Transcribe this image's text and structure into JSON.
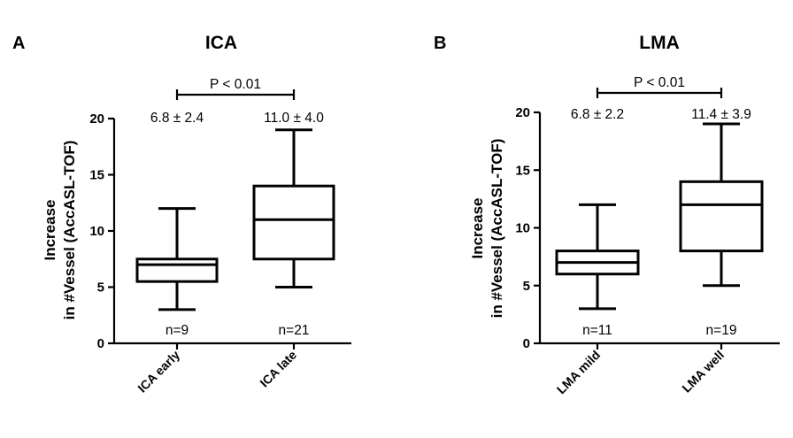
{
  "chart_data": [
    {
      "panel": "A",
      "type": "box",
      "title": "ICA",
      "ylabel_lines": [
        "Increase",
        "in #Vessel (AccASL-TOF)"
      ],
      "ylim": [
        0,
        20
      ],
      "yticks": [
        0,
        5,
        10,
        15,
        20
      ],
      "categories": [
        "ICA early",
        "ICA late"
      ],
      "boxes": [
        {
          "label": "ICA early",
          "min": 3,
          "q1": 5.5,
          "median": 7,
          "q3": 7.5,
          "max": 12,
          "n_label": "n=9",
          "summary": "6.8 ± 2.4"
        },
        {
          "label": "ICA late",
          "min": 5,
          "q1": 7.5,
          "median": 11,
          "q3": 14,
          "max": 19,
          "n_label": "n=21",
          "summary": "11.0 ± 4.0"
        }
      ],
      "significance": "P < 0.01"
    },
    {
      "panel": "B",
      "type": "box",
      "title": "LMA",
      "ylabel_lines": [
        "Increase",
        "in #Vessel (AccASL-TOF)"
      ],
      "ylim": [
        0,
        20
      ],
      "yticks": [
        0,
        5,
        10,
        15,
        20
      ],
      "categories": [
        "LMA mild",
        "LMA well"
      ],
      "boxes": [
        {
          "label": "LMA mild",
          "min": 3,
          "q1": 6,
          "median": 7,
          "q3": 8,
          "max": 12,
          "n_label": "n=11",
          "summary": "6.8 ± 2.2"
        },
        {
          "label": "LMA well",
          "min": 5,
          "q1": 8,
          "median": 12,
          "q3": 14,
          "max": 19,
          "n_label": "n=19",
          "summary": "11.4 ± 3.9"
        }
      ],
      "significance": "P < 0.01"
    }
  ]
}
